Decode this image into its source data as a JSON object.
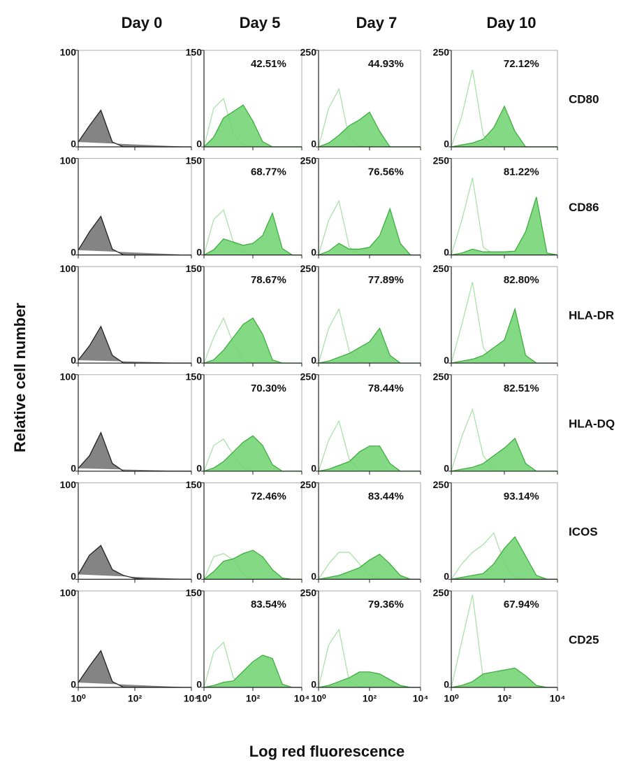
{
  "column_titles": [
    "Day 0",
    "Day 5",
    "Day 7",
    "Day 10"
  ],
  "row_labels": [
    "CD80",
    "CD86",
    "HLA-DR",
    "HLA-DQ",
    "ICOS",
    "CD25"
  ],
  "y_label": "Relative cell number",
  "x_label": "Log red fluorescence",
  "x_axis": {
    "log": true,
    "xlim": [
      1,
      10000
    ],
    "xticks": [
      {
        "value": 1,
        "label": "10⁰"
      },
      {
        "value": 100,
        "label": "10²"
      },
      {
        "value": 10000,
        "label": "10⁴"
      }
    ],
    "x": [
      1,
      2.5,
      6.3,
      16,
      40,
      100,
      250,
      630,
      1600,
      4000,
      10000
    ]
  },
  "chart_data": [
    {
      "type": "area",
      "ylim": [
        0,
        100
      ],
      "yticks": [
        0,
        100
      ],
      "series": [
        {
          "color": "#6e6e6e",
          "fill": true,
          "values": [
            5,
            22,
            38,
            5,
            0,
            0,
            0,
            0,
            0,
            0,
            0
          ]
        }
      ]
    },
    {
      "type": "area",
      "ylim": [
        0,
        150
      ],
      "yticks": [
        0,
        150
      ],
      "annotation": "42.51%",
      "series": [
        {
          "color": "#a9e3a9",
          "fill": false,
          "values": [
            0,
            60,
            75,
            20,
            3,
            0,
            0,
            0,
            0,
            0,
            0
          ]
        },
        {
          "color": "#6fd46f",
          "fill": true,
          "values": [
            0,
            15,
            45,
            55,
            65,
            40,
            8,
            0,
            0,
            0,
            0
          ]
        }
      ]
    },
    {
      "type": "area",
      "ylim": [
        0,
        250
      ],
      "yticks": [
        0,
        250
      ],
      "annotation": "44.93%",
      "series": [
        {
          "color": "#a9e3a9",
          "fill": false,
          "values": [
            0,
            100,
            150,
            20,
            2,
            0,
            0,
            0,
            0,
            0,
            0
          ]
        },
        {
          "color": "#6fd46f",
          "fill": true,
          "values": [
            0,
            10,
            30,
            55,
            70,
            90,
            40,
            0,
            0,
            0,
            0
          ]
        }
      ]
    },
    {
      "type": "area",
      "ylim": [
        0,
        250
      ],
      "yticks": [
        0,
        250
      ],
      "annotation": "72.12%",
      "series": [
        {
          "color": "#a9e3a9",
          "fill": false,
          "values": [
            0,
            80,
            200,
            30,
            3,
            0,
            0,
            0,
            0,
            0,
            0
          ]
        },
        {
          "color": "#6fd46f",
          "fill": true,
          "values": [
            0,
            5,
            10,
            20,
            50,
            105,
            40,
            0,
            0,
            0,
            0
          ]
        }
      ]
    },
    {
      "type": "area",
      "ylim": [
        0,
        100
      ],
      "yticks": [
        0,
        100
      ],
      "series": [
        {
          "color": "#6e6e6e",
          "fill": true,
          "values": [
            5,
            24,
            40,
            6,
            0,
            0,
            0,
            0,
            0,
            0,
            0
          ]
        }
      ]
    },
    {
      "type": "area",
      "ylim": [
        0,
        150
      ],
      "yticks": [
        0,
        150
      ],
      "annotation": "68.77%",
      "series": [
        {
          "color": "#a9e3a9",
          "fill": false,
          "values": [
            0,
            55,
            70,
            20,
            5,
            0,
            0,
            0,
            0,
            0,
            0
          ]
        },
        {
          "color": "#6fd46f",
          "fill": true,
          "values": [
            0,
            8,
            25,
            20,
            15,
            18,
            30,
            65,
            10,
            0,
            0
          ]
        }
      ]
    },
    {
      "type": "area",
      "ylim": [
        0,
        250
      ],
      "yticks": [
        0,
        250
      ],
      "annotation": "76.56%",
      "series": [
        {
          "color": "#a9e3a9",
          "fill": false,
          "values": [
            0,
            90,
            140,
            20,
            2,
            0,
            0,
            0,
            0,
            0,
            0
          ]
        },
        {
          "color": "#6fd46f",
          "fill": true,
          "values": [
            0,
            10,
            30,
            15,
            15,
            20,
            50,
            120,
            30,
            0,
            0
          ]
        }
      ]
    },
    {
      "type": "area",
      "ylim": [
        0,
        250
      ],
      "yticks": [
        0,
        250
      ],
      "annotation": "81.22%",
      "series": [
        {
          "color": "#a9e3a9",
          "fill": false,
          "values": [
            0,
            90,
            200,
            20,
            2,
            0,
            0,
            0,
            0,
            0,
            0
          ]
        },
        {
          "color": "#6fd46f",
          "fill": true,
          "values": [
            0,
            5,
            15,
            8,
            8,
            8,
            10,
            60,
            150,
            5,
            0
          ]
        }
      ]
    },
    {
      "type": "area",
      "ylim": [
        0,
        100
      ],
      "yticks": [
        0,
        100
      ],
      "series": [
        {
          "color": "#6e6e6e",
          "fill": true,
          "values": [
            3,
            18,
            38,
            8,
            0,
            0,
            0,
            0,
            0,
            0,
            0
          ]
        }
      ]
    },
    {
      "type": "area",
      "ylim": [
        0,
        150
      ],
      "yticks": [
        0,
        150
      ],
      "annotation": "78.67%",
      "series": [
        {
          "color": "#a9e3a9",
          "fill": false,
          "values": [
            0,
            40,
            70,
            30,
            5,
            0,
            0,
            0,
            0,
            0,
            0
          ]
        },
        {
          "color": "#6fd46f",
          "fill": true,
          "values": [
            0,
            5,
            20,
            40,
            60,
            70,
            45,
            5,
            0,
            0,
            0
          ]
        }
      ]
    },
    {
      "type": "area",
      "ylim": [
        0,
        250
      ],
      "yticks": [
        0,
        250
      ],
      "annotation": "77.89%",
      "series": [
        {
          "color": "#a9e3a9",
          "fill": false,
          "values": [
            0,
            90,
            140,
            30,
            3,
            0,
            0,
            0,
            0,
            0,
            0
          ]
        },
        {
          "color": "#6fd46f",
          "fill": true,
          "values": [
            0,
            5,
            15,
            25,
            40,
            55,
            90,
            20,
            0,
            0,
            0
          ]
        }
      ]
    },
    {
      "type": "area",
      "ylim": [
        0,
        250
      ],
      "yticks": [
        0,
        250
      ],
      "annotation": "82.80%",
      "series": [
        {
          "color": "#a9e3a9",
          "fill": false,
          "values": [
            0,
            100,
            210,
            40,
            3,
            0,
            0,
            0,
            0,
            0,
            0
          ]
        },
        {
          "color": "#6fd46f",
          "fill": true,
          "values": [
            0,
            5,
            10,
            20,
            40,
            60,
            140,
            20,
            0,
            0,
            0
          ]
        }
      ]
    },
    {
      "type": "area",
      "ylim": [
        0,
        100
      ],
      "yticks": [
        0,
        100
      ],
      "series": [
        {
          "color": "#6e6e6e",
          "fill": true,
          "values": [
            3,
            16,
            40,
            8,
            0,
            0,
            0,
            0,
            0,
            0,
            0
          ]
        }
      ]
    },
    {
      "type": "area",
      "ylim": [
        0,
        150
      ],
      "yticks": [
        0,
        150
      ],
      "annotation": "70.30%",
      "series": [
        {
          "color": "#a9e3a9",
          "fill": false,
          "values": [
            0,
            40,
            50,
            25,
            5,
            0,
            0,
            0,
            0,
            0,
            0
          ]
        },
        {
          "color": "#6fd46f",
          "fill": true,
          "values": [
            0,
            5,
            15,
            30,
            45,
            55,
            40,
            10,
            0,
            0,
            0
          ]
        }
      ]
    },
    {
      "type": "area",
      "ylim": [
        0,
        250
      ],
      "yticks": [
        0,
        250
      ],
      "annotation": "78.44%",
      "series": [
        {
          "color": "#a9e3a9",
          "fill": false,
          "values": [
            0,
            80,
            130,
            30,
            3,
            0,
            0,
            0,
            0,
            0,
            0
          ]
        },
        {
          "color": "#6fd46f",
          "fill": true,
          "values": [
            0,
            5,
            15,
            25,
            50,
            65,
            65,
            20,
            0,
            0,
            0
          ]
        }
      ]
    },
    {
      "type": "area",
      "ylim": [
        0,
        250
      ],
      "yticks": [
        0,
        250
      ],
      "annotation": "82.51%",
      "series": [
        {
          "color": "#a9e3a9",
          "fill": false,
          "values": [
            0,
            90,
            160,
            40,
            3,
            0,
            0,
            0,
            0,
            0,
            0
          ]
        },
        {
          "color": "#6fd46f",
          "fill": true,
          "values": [
            0,
            5,
            10,
            20,
            40,
            60,
            85,
            20,
            0,
            0,
            0
          ]
        }
      ]
    },
    {
      "type": "area",
      "ylim": [
        0,
        100
      ],
      "yticks": [
        0,
        100
      ],
      "series": [
        {
          "color": "#6e6e6e",
          "fill": true,
          "values": [
            5,
            25,
            35,
            10,
            4,
            1,
            0,
            0,
            0,
            0,
            0
          ]
        }
      ]
    },
    {
      "type": "area",
      "ylim": [
        0,
        150
      ],
      "yticks": [
        0,
        150
      ],
      "annotation": "72.46%",
      "series": [
        {
          "color": "#a9e3a9",
          "fill": false,
          "values": [
            0,
            35,
            40,
            30,
            8,
            0,
            0,
            0,
            0,
            0,
            0
          ]
        },
        {
          "color": "#6fd46f",
          "fill": true,
          "values": [
            0,
            12,
            28,
            32,
            40,
            45,
            35,
            15,
            2,
            0,
            0
          ]
        }
      ]
    },
    {
      "type": "area",
      "ylim": [
        0,
        250
      ],
      "yticks": [
        0,
        250
      ],
      "annotation": "83.44%",
      "series": [
        {
          "color": "#a9e3a9",
          "fill": false,
          "values": [
            0,
            40,
            70,
            70,
            40,
            10,
            0,
            0,
            0,
            0,
            0
          ]
        },
        {
          "color": "#6fd46f",
          "fill": true,
          "values": [
            0,
            5,
            10,
            20,
            30,
            50,
            65,
            40,
            10,
            0,
            0
          ]
        }
      ]
    },
    {
      "type": "area",
      "ylim": [
        0,
        250
      ],
      "yticks": [
        0,
        250
      ],
      "annotation": "93.14%",
      "series": [
        {
          "color": "#a9e3a9",
          "fill": false,
          "values": [
            0,
            40,
            70,
            90,
            120,
            40,
            5,
            0,
            0,
            0,
            0
          ]
        },
        {
          "color": "#6fd46f",
          "fill": true,
          "values": [
            0,
            5,
            10,
            15,
            40,
            80,
            110,
            60,
            10,
            0,
            0
          ]
        }
      ]
    },
    {
      "type": "area",
      "ylim": [
        0,
        100
      ],
      "yticks": [
        0,
        100
      ],
      "series": [
        {
          "color": "#6e6e6e",
          "fill": true,
          "values": [
            5,
            22,
            38,
            6,
            0,
            0,
            0,
            0,
            0,
            0,
            0
          ]
        }
      ]
    },
    {
      "type": "area",
      "ylim": [
        0,
        150
      ],
      "yticks": [
        0,
        150
      ],
      "annotation": "83.54%",
      "series": [
        {
          "color": "#a9e3a9",
          "fill": false,
          "values": [
            0,
            55,
            70,
            15,
            3,
            0,
            0,
            0,
            0,
            0,
            0
          ]
        },
        {
          "color": "#6fd46f",
          "fill": true,
          "values": [
            0,
            3,
            8,
            10,
            25,
            40,
            50,
            45,
            5,
            0,
            0
          ]
        }
      ]
    },
    {
      "type": "area",
      "ylim": [
        0,
        250
      ],
      "yticks": [
        0,
        250
      ],
      "annotation": "79.36%",
      "series": [
        {
          "color": "#a9e3a9",
          "fill": false,
          "values": [
            0,
            110,
            150,
            15,
            2,
            0,
            0,
            0,
            0,
            0,
            0
          ]
        },
        {
          "color": "#6fd46f",
          "fill": true,
          "values": [
            0,
            5,
            15,
            25,
            40,
            40,
            35,
            20,
            5,
            0,
            0
          ]
        }
      ]
    },
    {
      "type": "area",
      "ylim": [
        0,
        250
      ],
      "yticks": [
        0,
        250
      ],
      "annotation": "67.94%",
      "series": [
        {
          "color": "#a9e3a9",
          "fill": false,
          "values": [
            0,
            120,
            240,
            20,
            2,
            0,
            0,
            0,
            0,
            0,
            0
          ]
        },
        {
          "color": "#6fd46f",
          "fill": true,
          "values": [
            0,
            5,
            15,
            35,
            40,
            45,
            50,
            30,
            5,
            0,
            0
          ]
        }
      ]
    }
  ]
}
